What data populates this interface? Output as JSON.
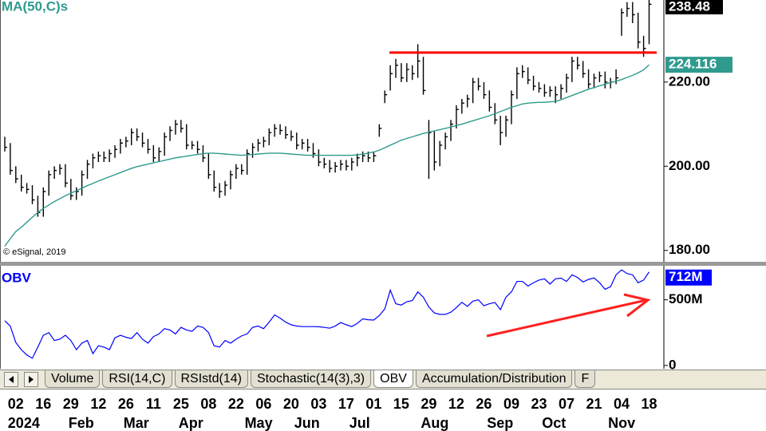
{
  "chart_data": [
    {
      "type": "hlc",
      "title": "MA(50,C)s",
      "credit": "© eSignal, 2019",
      "color": "#000000",
      "ylim": [
        177.3,
        239.5
      ],
      "yticks": [
        {
          "value": 180,
          "label": "180.00"
        },
        {
          "value": 200,
          "label": "200.00"
        },
        {
          "value": 220,
          "label": "220.00"
        }
      ],
      "high": [
        207,
        205.5,
        200,
        198,
        196,
        195.5,
        193,
        195,
        199,
        200,
        200.5,
        200.5,
        197,
        195,
        199,
        201.5,
        203,
        203.5,
        203.5,
        204,
        205,
        206.5,
        207,
        209,
        209,
        208,
        206.5,
        205,
        204.5,
        208,
        209.5,
        211,
        211,
        210,
        206,
        206,
        205,
        203,
        199,
        196,
        196.5,
        199,
        200.5,
        200.5,
        204,
        205.5,
        206.5,
        207,
        209,
        210,
        210,
        209.5,
        208.5,
        208,
        206.5,
        206.5,
        205.5,
        204,
        202,
        201.5,
        201,
        201.5,
        201.5,
        202,
        203,
        203.5,
        203.5,
        203.5,
        210,
        218,
        224,
        225.5,
        224.5,
        224.5,
        224,
        229,
        226,
        211,
        208.5,
        206,
        208,
        211,
        214.5,
        216,
        217,
        221,
        221,
        220,
        218,
        215,
        212,
        212,
        218,
        223.5,
        224,
        223.5,
        221.5,
        220,
        219.5,
        219,
        219,
        219.5,
        222,
        226,
        226,
        225,
        223,
        222,
        222.5,
        222.5,
        221,
        223,
        237.5,
        239,
        239,
        236.5,
        231,
        239.5
      ],
      "low": [
        203.5,
        198,
        196,
        194,
        193.5,
        191,
        188,
        188,
        193,
        197,
        198,
        195,
        192,
        192,
        193,
        197,
        199.5,
        201,
        201,
        201,
        202,
        203,
        204.5,
        205,
        206,
        204.5,
        203,
        201,
        201,
        202.5,
        206,
        207.5,
        208,
        204,
        204,
        203,
        201,
        197,
        194,
        192.5,
        193,
        194.5,
        197,
        198,
        198,
        202,
        203.5,
        204.5,
        205,
        207,
        207.5,
        206.5,
        206,
        204,
        204,
        203.5,
        202,
        200,
        199.5,
        198.5,
        198.5,
        199,
        199,
        199,
        200,
        201,
        201,
        201,
        207,
        215,
        218,
        221,
        220,
        220,
        220.5,
        221,
        217,
        197,
        199,
        200,
        204,
        206,
        209,
        212.5,
        214,
        215,
        218,
        216,
        213,
        210,
        205,
        207,
        210,
        216,
        221,
        219.5,
        218,
        217.5,
        216.5,
        216.5,
        215,
        216,
        217.5,
        220,
        223,
        221,
        218.5,
        218.5,
        220,
        218.5,
        218.5,
        219.5,
        231,
        235.5,
        234,
        228,
        226,
        229
      ],
      "close": [
        204.5,
        199,
        197,
        195,
        194.5,
        192,
        189,
        194,
        198,
        199,
        199.5,
        196,
        193,
        194,
        198,
        200.5,
        202,
        202.5,
        202,
        203,
        204,
        205.5,
        206,
        208,
        207,
        205.5,
        204,
        202,
        203.5,
        207,
        208.5,
        210,
        209,
        205,
        205,
        204,
        202,
        198,
        195,
        194,
        195.5,
        198,
        199.5,
        199,
        203,
        204.5,
        205.5,
        206,
        208,
        209,
        208.5,
        207.5,
        207,
        205,
        205.5,
        204.5,
        203,
        201,
        200.5,
        199.5,
        200,
        200.5,
        200,
        201,
        202,
        202.5,
        202,
        202.5,
        209,
        217,
        222,
        224,
        221,
        223,
        222,
        225,
        218,
        208,
        201,
        205,
        207,
        210,
        213.5,
        215,
        216,
        220,
        219,
        217,
        214,
        211,
        208,
        211,
        217,
        222,
        222.5,
        220.5,
        219,
        218.5,
        217.5,
        218,
        217,
        218.5,
        221,
        225,
        224,
        222,
        219.5,
        221,
        221.5,
        220,
        220,
        221,
        236.5,
        237.5,
        236,
        229.5,
        228,
        238.48
      ],
      "ma": {
        "color": "#2f9a8e",
        "values": [
          181,
          182.8,
          184.5,
          185.5,
          186.7,
          187.9,
          189,
          190,
          190.8,
          191.6,
          192.3,
          193,
          193.6,
          194.2,
          194.8,
          195.4,
          195.9,
          196.5,
          197,
          197.5,
          198,
          198.5,
          199,
          199.5,
          199.9,
          200.2,
          200.5,
          200.8,
          201.1,
          201.4,
          201.7,
          202,
          202.2,
          202.4,
          202.6,
          202.8,
          203,
          203.1,
          203.1,
          203,
          202.9,
          202.8,
          202.7,
          202.6,
          202.7,
          202.8,
          202.9,
          203,
          203.1,
          203.1,
          203.1,
          203,
          202.9,
          202.8,
          202.7,
          202.6,
          202.6,
          202.6,
          202.6,
          202.6,
          202.6,
          202.6,
          202.6,
          202.6,
          202.7,
          202.9,
          203.1,
          203.4,
          203.8,
          204.4,
          205,
          205.6,
          206.2,
          206.6,
          207,
          207.4,
          207.8,
          208.1,
          208.4,
          208.7,
          209,
          209.3,
          209.7,
          210,
          210.4,
          210.8,
          211.2,
          211.6,
          212,
          212.5,
          213,
          213.5,
          214,
          214.4,
          214.8,
          215,
          215.1,
          215.2,
          215.2,
          215.3,
          215.4,
          215.8,
          216.3,
          216.8,
          217.3,
          217.8,
          218.3,
          218.7,
          219.1,
          219.5,
          219.9,
          220.2,
          220.6,
          221.1,
          221.6,
          222.2,
          222.9,
          224.116
        ]
      },
      "resistance": {
        "value": 227,
        "color": "#ff0000"
      }
    },
    {
      "type": "line",
      "title": "OBV",
      "color": "#0000ff",
      "ylim": [
        -25,
        759
      ],
      "yticks": [
        0,
        {
          "value": 500,
          "label": "500M"
        }
      ],
      "values": [
        340,
        300,
        175,
        120,
        80,
        55,
        140,
        230,
        250,
        190,
        200,
        230,
        190,
        120,
        170,
        190,
        90,
        150,
        140,
        120,
        210,
        230,
        215,
        205,
        250,
        200,
        170,
        220,
        240,
        280,
        270,
        240,
        290,
        270,
        260,
        300,
        290,
        250,
        150,
        140,
        190,
        170,
        200,
        225,
        240,
        290,
        300,
        280,
        330,
        385,
        360,
        330,
        310,
        300,
        296,
        296,
        296,
        295,
        290,
        284,
        300,
        327,
        310,
        296,
        320,
        355,
        348,
        346,
        380,
        430,
        574,
        470,
        460,
        485,
        494,
        560,
        520,
        445,
        400,
        389,
        389,
        405,
        440,
        481,
        450,
        490,
        500,
        455,
        470,
        480,
        425,
        520,
        560,
        640,
        640,
        605,
        630,
        650,
        660,
        620,
        660,
        665,
        640,
        690,
        670,
        636,
        655,
        667,
        630,
        580,
        600,
        690,
        728,
        700,
        690,
        630,
        650,
        712
      ],
      "last_value_label": "712M"
    }
  ],
  "x_axis": {
    "categories": [
      null,
      null,
      "02",
      null,
      null,
      null,
      null,
      "16",
      null,
      null,
      null,
      null,
      "29",
      null,
      null,
      null,
      null,
      "12",
      null,
      null,
      null,
      null,
      "26",
      null,
      null,
      null,
      null,
      "11",
      null,
      null,
      null,
      null,
      "25",
      null,
      null,
      null,
      null,
      "08",
      null,
      null,
      null,
      null,
      "22",
      null,
      null,
      null,
      null,
      "06",
      null,
      null,
      null,
      null,
      "20",
      null,
      null,
      null,
      null,
      "03",
      null,
      null,
      null,
      null,
      "17",
      null,
      null,
      null,
      null,
      "01",
      null,
      null,
      null,
      null,
      "15",
      null,
      null,
      null,
      null,
      "29",
      null,
      null,
      null,
      null,
      "12",
      null,
      null,
      null,
      null,
      "26",
      null,
      null,
      null,
      null,
      "09",
      null,
      null,
      null,
      null,
      "23",
      null,
      null,
      null,
      null,
      "07",
      null,
      null,
      null,
      null,
      "21",
      null,
      null,
      null,
      null,
      "04",
      null,
      null,
      null,
      null,
      "18"
    ],
    "months": [
      null,
      null,
      "2024",
      null,
      null,
      null,
      null,
      null,
      null,
      null,
      null,
      null,
      null,
      "Feb",
      null,
      null,
      null,
      null,
      null,
      null,
      null,
      null,
      null,
      "Mar",
      null,
      null,
      null,
      null,
      null,
      null,
      null,
      null,
      null,
      "Apr",
      null,
      null,
      null,
      null,
      null,
      null,
      null,
      null,
      null,
      null,
      null,
      "May",
      null,
      null,
      null,
      null,
      null,
      null,
      null,
      null,
      "Jun",
      null,
      null,
      null,
      null,
      null,
      null,
      null,
      null,
      null,
      "Jul",
      null,
      null,
      null,
      null,
      null,
      null,
      null,
      null,
      null,
      null,
      null,
      null,
      "Aug",
      null,
      null,
      null,
      null,
      null,
      null,
      null,
      null,
      null,
      null,
      null,
      "Sep",
      null,
      null,
      null,
      null,
      null,
      null,
      null,
      null,
      null,
      "Oct",
      null,
      null,
      null,
      null,
      null,
      null,
      null,
      null,
      null,
      null,
      null,
      "Nov",
      null,
      null,
      null,
      null,
      null,
      null
    ]
  },
  "tabs": {
    "labels": [
      "Volume",
      "RSI(14,C)",
      "RSIstd(14)",
      "Stochastic(14(3),3)",
      "OBV",
      "Accumulation/Distribution",
      "F"
    ],
    "selected": 4
  }
}
